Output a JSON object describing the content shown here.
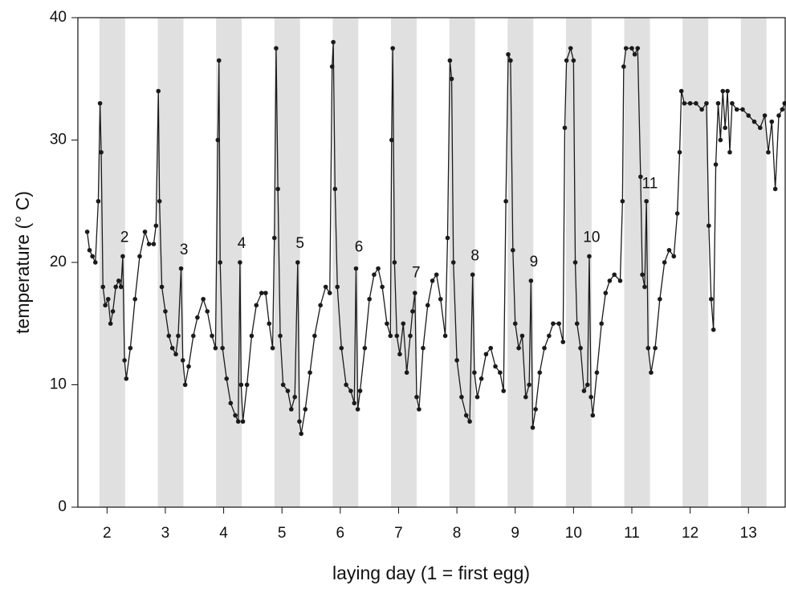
{
  "chart_data": {
    "type": "line",
    "xlabel": "laying day (1 = first egg)",
    "ylabel": "temperature (° C)",
    "xlim": [
      1.5,
      13.63
    ],
    "ylim": [
      0,
      40
    ],
    "xticks": [
      2,
      3,
      4,
      5,
      6,
      7,
      8,
      9,
      10,
      11,
      12,
      13
    ],
    "yticks": [
      0,
      10,
      20,
      30,
      40
    ],
    "color": "#1a1a1a",
    "band_color": "#e0e0e0",
    "night_bands": [
      [
        1.87,
        2.31
      ],
      [
        2.87,
        3.31
      ],
      [
        3.87,
        4.31
      ],
      [
        4.87,
        5.31
      ],
      [
        5.87,
        6.31
      ],
      [
        6.87,
        7.31
      ],
      [
        7.87,
        8.31
      ],
      [
        8.87,
        9.31
      ],
      [
        9.87,
        10.31
      ],
      [
        10.87,
        11.31
      ],
      [
        11.87,
        12.31
      ],
      [
        12.87,
        13.31
      ]
    ],
    "annotations": [
      {
        "text": "2",
        "x": 2.3,
        "y": 22
      },
      {
        "text": "3",
        "x": 3.32,
        "y": 21
      },
      {
        "text": "4",
        "x": 4.31,
        "y": 21.5
      },
      {
        "text": "5",
        "x": 5.31,
        "y": 21.5
      },
      {
        "text": "6",
        "x": 6.32,
        "y": 21.2
      },
      {
        "text": "7",
        "x": 7.3,
        "y": 19.1
      },
      {
        "text": "8",
        "x": 8.31,
        "y": 20.5
      },
      {
        "text": "9",
        "x": 9.32,
        "y": 20
      },
      {
        "text": "10",
        "x": 10.31,
        "y": 22
      },
      {
        "text": "11",
        "x": 11.31,
        "y": 26.4
      }
    ],
    "x": [
      1.66,
      1.7,
      1.75,
      1.8,
      1.85,
      1.88,
      1.9,
      1.93,
      1.97,
      2.02,
      2.06,
      2.1,
      2.15,
      2.2,
      2.24,
      2.27,
      2.3,
      2.33,
      2.4,
      2.48,
      2.56,
      2.65,
      2.72,
      2.8,
      2.84,
      2.88,
      2.9,
      2.94,
      3.0,
      3.06,
      3.12,
      3.18,
      3.22,
      3.27,
      3.3,
      3.34,
      3.4,
      3.48,
      3.55,
      3.65,
      3.72,
      3.8,
      3.86,
      3.9,
      3.92,
      3.94,
      3.98,
      4.05,
      4.12,
      4.2,
      4.25,
      4.28,
      4.3,
      4.33,
      4.4,
      4.48,
      4.56,
      4.65,
      4.72,
      4.78,
      4.84,
      4.87,
      4.9,
      4.93,
      4.97,
      5.02,
      5.1,
      5.16,
      5.22,
      5.27,
      5.3,
      5.33,
      5.4,
      5.48,
      5.56,
      5.66,
      5.75,
      5.82,
      5.86,
      5.88,
      5.91,
      5.95,
      6.02,
      6.1,
      6.18,
      6.24,
      6.27,
      6.3,
      6.34,
      6.42,
      6.5,
      6.58,
      6.65,
      6.72,
      6.8,
      6.86,
      6.88,
      6.9,
      6.93,
      6.97,
      7.02,
      7.08,
      7.14,
      7.2,
      7.24,
      7.28,
      7.31,
      7.35,
      7.42,
      7.5,
      7.58,
      7.65,
      7.72,
      7.8,
      7.84,
      7.88,
      7.91,
      7.94,
      8.0,
      8.08,
      8.16,
      8.22,
      8.27,
      8.3,
      8.35,
      8.42,
      8.5,
      8.58,
      8.66,
      8.74,
      8.8,
      8.84,
      8.88,
      8.92,
      8.96,
      9.0,
      9.06,
      9.12,
      9.18,
      9.24,
      9.27,
      9.3,
      9.35,
      9.42,
      9.5,
      9.58,
      9.65,
      9.75,
      9.82,
      9.85,
      9.88,
      9.95,
      10.0,
      10.03,
      10.06,
      10.12,
      10.18,
      10.24,
      10.27,
      10.3,
      10.33,
      10.4,
      10.48,
      10.55,
      10.62,
      10.7,
      10.8,
      10.84,
      10.86,
      10.9,
      11.0,
      11.05,
      11.1,
      11.15,
      11.18,
      11.22,
      11.25,
      11.28,
      11.33,
      11.4,
      11.48,
      11.56,
      11.64,
      11.72,
      11.78,
      11.82,
      11.85,
      11.9,
      12.0,
      12.1,
      12.2,
      12.28,
      12.32,
      12.36,
      12.4,
      12.44,
      12.48,
      12.52,
      12.56,
      12.6,
      12.64,
      12.68,
      12.72,
      12.8,
      12.9,
      13.0,
      13.1,
      13.2,
      13.28,
      13.34,
      13.4,
      13.46,
      13.52,
      13.58,
      13.62
    ],
    "values": [
      22.5,
      21,
      20.5,
      20,
      25,
      33,
      29,
      18,
      16.5,
      17,
      15,
      16,
      18,
      18.5,
      18,
      20.5,
      12,
      10.5,
      13,
      17,
      20.5,
      22.5,
      21.5,
      21.5,
      23,
      34,
      25,
      18,
      16,
      14,
      13,
      12.5,
      14,
      19.5,
      12,
      10,
      11.5,
      14,
      15.5,
      17,
      16,
      14,
      13,
      30,
      36.5,
      20,
      13,
      10.5,
      8.5,
      7.5,
      7,
      20,
      10,
      7,
      10,
      14,
      16.5,
      17.5,
      17.5,
      15,
      13,
      22,
      37.5,
      26,
      14,
      10,
      9.5,
      8,
      9,
      20,
      7,
      6,
      8,
      11,
      14,
      16.5,
      18,
      17.5,
      36,
      38,
      26,
      18,
      13,
      10,
      9.5,
      8.5,
      19.5,
      8,
      9.5,
      13,
      17,
      19,
      19.5,
      18,
      15,
      14,
      30,
      37.5,
      20,
      14,
      12.5,
      15,
      11,
      14,
      16,
      17.5,
      9,
      8,
      13,
      16.5,
      18.5,
      19,
      17,
      14,
      22,
      36.5,
      35,
      20,
      12,
      9,
      7.5,
      7,
      19,
      11,
      9,
      10.5,
      12.5,
      13,
      11.5,
      11,
      9.5,
      25,
      37,
      36.5,
      21,
      15,
      13,
      14,
      9,
      10,
      18.5,
      6.5,
      8,
      11,
      13,
      14,
      15,
      15,
      13.5,
      31,
      36.5,
      37.5,
      36.5,
      20,
      15,
      13,
      9.5,
      10,
      20.5,
      9,
      7.5,
      11,
      15,
      17.5,
      18.5,
      19,
      18.5,
      25,
      36,
      37.5,
      37.5,
      37,
      37.5,
      27,
      19,
      18,
      25,
      13,
      11,
      13,
      17,
      20,
      21,
      20.5,
      24,
      29,
      34,
      33,
      33,
      33,
      32.5,
      33,
      23,
      17,
      14.5,
      28,
      33,
      30,
      34,
      31,
      34,
      29,
      33,
      32.5,
      32.5,
      32,
      31.5,
      31,
      32,
      29,
      31.5,
      26,
      32,
      32.5,
      33
    ]
  }
}
